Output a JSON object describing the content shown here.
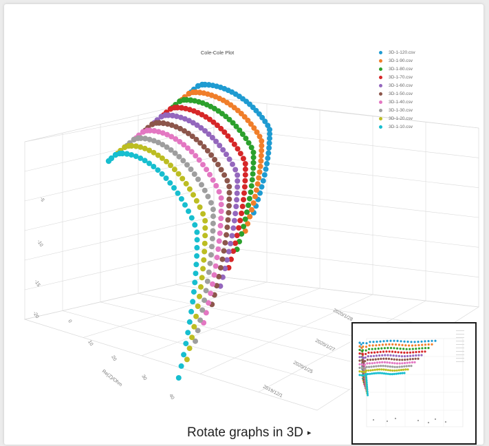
{
  "caption": {
    "text": "Rotate graphs in 3D",
    "arrow": "▸"
  },
  "chart_data": {
    "type": "scatter",
    "title": "Cole-Cole Plot",
    "grid": true,
    "legend_position": "top-right",
    "xlabel": "Re(Z)/Ohm",
    "x_tick_labels": [
      "0",
      "10",
      "20",
      "30",
      "40"
    ],
    "y_tick_labels": [
      "2019/12/1",
      "2020/1/25",
      "2020/1/27",
      "2020/1/28"
    ],
    "z_tick_labels": [
      "-5",
      "-10",
      "-15",
      "-20"
    ],
    "series": [
      {
        "name": "3D-1-120.csv",
        "color": "#1f9bd1"
      },
      {
        "name": "3D-1-90.csv",
        "color": "#f07e2a"
      },
      {
        "name": "3D-1-80.csv",
        "color": "#2ca02c"
      },
      {
        "name": "3D-1-70.csv",
        "color": "#d62728"
      },
      {
        "name": "3D-1-60.csv",
        "color": "#9467bd"
      },
      {
        "name": "3D-1-50.csv",
        "color": "#8c564b"
      },
      {
        "name": "3D-1-40.csv",
        "color": "#e377c2"
      },
      {
        "name": "3D-1-30.csv",
        "color": "#9e9e9e"
      },
      {
        "name": "3D-1-20.csv",
        "color": "#bcbd22"
      },
      {
        "name": "3D-1-10.csv",
        "color": "#17becf"
      }
    ]
  }
}
